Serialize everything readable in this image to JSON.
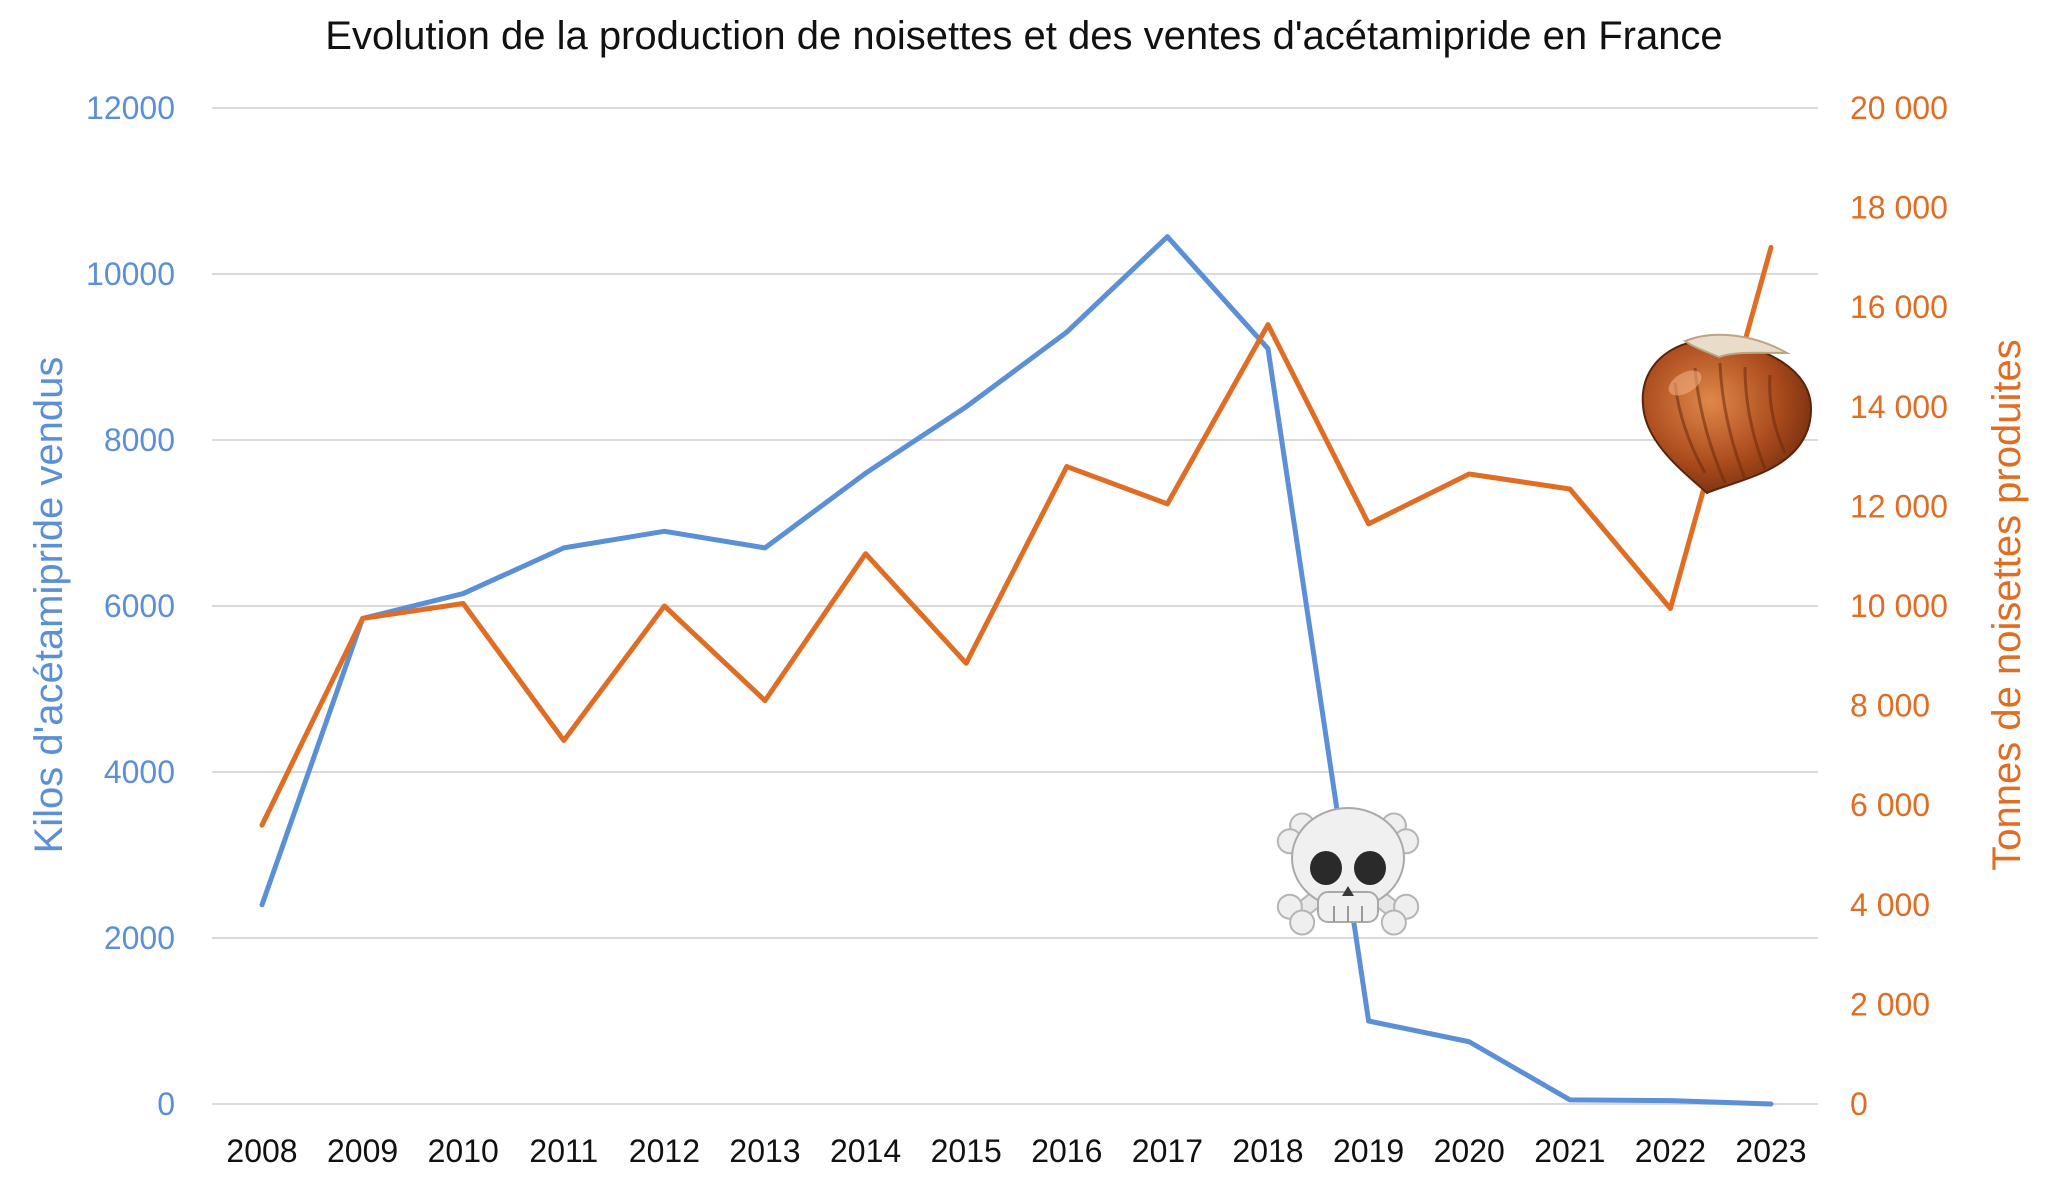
{
  "chart_data": {
    "type": "line",
    "title": "Evolution de la production de noisettes et des ventes d'acétamipride en France",
    "x": [
      "2008",
      "2009",
      "2010",
      "2011",
      "2012",
      "2013",
      "2014",
      "2015",
      "2016",
      "2017",
      "2018",
      "2019",
      "2020",
      "2021",
      "2022",
      "2023"
    ],
    "series": [
      {
        "name": "Kilos d'acétamipride vendus",
        "axis": "left",
        "color": "#5b8fd6",
        "values": [
          2400,
          5850,
          6150,
          6700,
          6900,
          6700,
          7600,
          8400,
          9300,
          10450,
          9100,
          1000,
          750,
          50,
          40,
          0
        ]
      },
      {
        "name": "Tonnes de noisettes produites",
        "axis": "right",
        "color": "#e06d24",
        "values": [
          5600,
          9750,
          10050,
          7300,
          10000,
          8100,
          11050,
          8850,
          12800,
          12050,
          15650,
          11650,
          12650,
          12350,
          9950,
          17200
        ]
      }
    ],
    "y_left": {
      "label": "Kilos d'acétamipride vendus",
      "ylim": [
        0,
        12000
      ],
      "ticks": [
        "0",
        "2000",
        "4000",
        "6000",
        "8000",
        "10000",
        "12000"
      ]
    },
    "y_right": {
      "label": "Tonnes de noisettes produites",
      "ylim": [
        0,
        20000
      ],
      "ticks": [
        "0",
        "2 000",
        "4 000",
        "6 000",
        "8 000",
        "10 000",
        "12 000",
        "14 000",
        "16 000",
        "18 000",
        "20 000"
      ]
    },
    "grid": true,
    "annotations": [
      {
        "icon": "skull-crossbones-icon",
        "near_x": "2019"
      },
      {
        "icon": "hazelnut-icon",
        "near_x": "2022"
      }
    ]
  }
}
